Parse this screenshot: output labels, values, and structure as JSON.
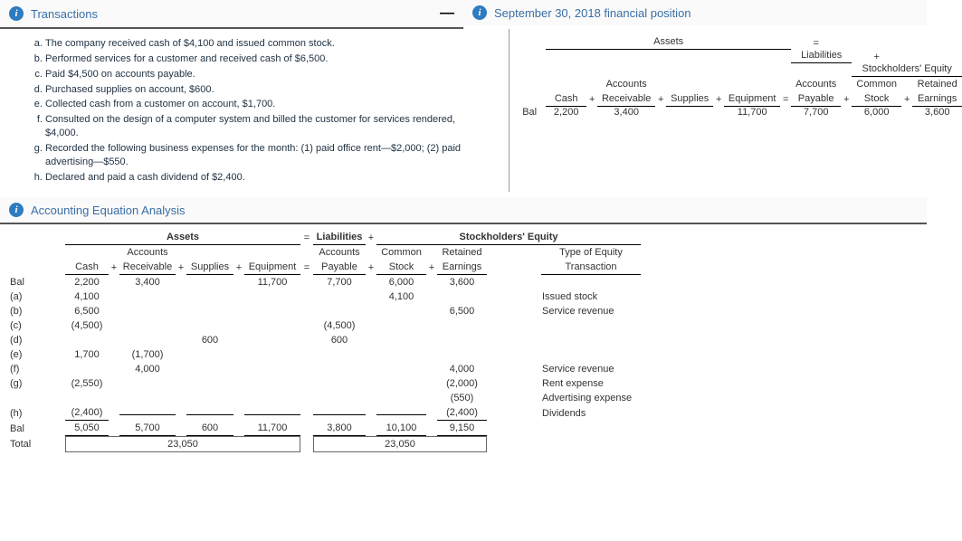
{
  "headers": {
    "transactions": "Transactions",
    "fin_position": "September 30, 2018 financial position",
    "aea": "Accounting Equation Analysis"
  },
  "txns": [
    "The company received cash of $4,100 and issued common stock.",
    "Performed services for a customer and received cash of $6,500.",
    "Paid $4,500 on accounts payable.",
    "Purchased supplies on account, $600.",
    "Collected cash from a customer on account, $1,700.",
    "Consulted on the design of a computer system and billed the customer for services rendered, $4,000.",
    "Recorded the following business expenses for the month: (1) paid office rent—$2,000; (2) paid advertising—$550.",
    "Declared and paid a cash dividend of $2,400."
  ],
  "mini": {
    "group": {
      "assets": "Assets",
      "liab": "Liabilities",
      "se": "Stockholders' Equity"
    },
    "sub": {
      "accounts": "Accounts",
      "common": "Common",
      "retained": "Retained"
    },
    "cols": {
      "cash": "Cash",
      "receivable": "Receivable",
      "supplies": "Supplies",
      "equipment": "Equipment",
      "payable": "Payable",
      "stock": "Stock",
      "earnings": "Earnings"
    },
    "ops": {
      "eq": "=",
      "plus": "+"
    },
    "bal_lbl": "Bal",
    "bal": {
      "cash": "2,200",
      "receivable": "3,400",
      "supplies": "",
      "equipment": "11,700",
      "payable": "7,700",
      "stock": "6,000",
      "earnings": "3,600"
    }
  },
  "ana": {
    "group": {
      "assets": "Assets",
      "liab": "Liabilities",
      "se": "Stockholders' Equity"
    },
    "sub1": {
      "accounts": "Accounts",
      "common": "Common",
      "retained": "Retained",
      "type": "Type of Equity"
    },
    "cols": {
      "cash": "Cash",
      "receivable": "Receivable",
      "supplies": "Supplies",
      "equipment": "Equipment",
      "payable": "Payable",
      "stock": "Stock",
      "earnings": "Earnings",
      "transaction": "Transaction"
    },
    "ops": {
      "eq": "=",
      "plus": "+"
    },
    "rows": [
      {
        "lbl": "Bal",
        "cash": "2,200",
        "recv": "3,400",
        "supp": "",
        "equip": "11,700",
        "pay": "7,700",
        "stock": "6,000",
        "earn": "3,600",
        "desc": ""
      },
      {
        "lbl": "(a)",
        "cash": "4,100",
        "recv": "",
        "supp": "",
        "equip": "",
        "pay": "",
        "stock": "4,100",
        "earn": "",
        "desc": "Issued stock"
      },
      {
        "lbl": "(b)",
        "cash": "6,500",
        "recv": "",
        "supp": "",
        "equip": "",
        "pay": "",
        "stock": "",
        "earn": "6,500",
        "desc": "Service revenue"
      },
      {
        "lbl": "(c)",
        "cash": "(4,500)",
        "recv": "",
        "supp": "",
        "equip": "",
        "pay": "(4,500)",
        "stock": "",
        "earn": "",
        "desc": ""
      },
      {
        "lbl": "(d)",
        "cash": "",
        "recv": "",
        "supp": "600",
        "equip": "",
        "pay": "600",
        "stock": "",
        "earn": "",
        "desc": ""
      },
      {
        "lbl": "(e)",
        "cash": "1,700",
        "recv": "(1,700)",
        "supp": "",
        "equip": "",
        "pay": "",
        "stock": "",
        "earn": "",
        "desc": ""
      },
      {
        "lbl": "(f)",
        "cash": "",
        "recv": "4,000",
        "supp": "",
        "equip": "",
        "pay": "",
        "stock": "",
        "earn": "4,000",
        "desc": "Service revenue"
      },
      {
        "lbl": "(g)",
        "cash": "(2,550)",
        "recv": "",
        "supp": "",
        "equip": "",
        "pay": "",
        "stock": "",
        "earn": "(2,000)",
        "desc": "Rent expense"
      },
      {
        "lbl": "",
        "cash": "",
        "recv": "",
        "supp": "",
        "equip": "",
        "pay": "",
        "stock": "",
        "earn": "(550)",
        "desc": "Advertising expense"
      },
      {
        "lbl": "(h)",
        "cash": "(2,400)",
        "recv": "",
        "supp": "",
        "equip": "",
        "pay": "",
        "stock": "",
        "earn": "(2,400)",
        "desc": "Dividends"
      },
      {
        "lbl": "Bal",
        "cash": "5,050",
        "recv": "5,700",
        "supp": "600",
        "equip": "11,700",
        "pay": "3,800",
        "stock": "10,100",
        "earn": "9,150",
        "desc": ""
      }
    ],
    "total_lbl": "Total",
    "total_assets": "23,050",
    "total_lse": "23,050"
  }
}
